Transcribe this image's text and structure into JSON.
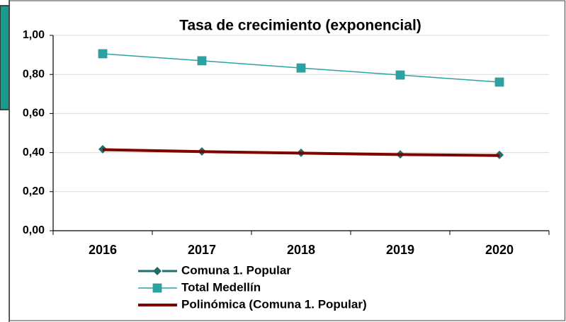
{
  "chart_data": {
    "type": "line",
    "title": "Tasa de crecimiento (exponencial)",
    "categories": [
      "2016",
      "2017",
      "2018",
      "2019",
      "2020"
    ],
    "series": [
      {
        "name": "Comuna 1. Popular",
        "color": "#1f6e6e",
        "marker": "diamond",
        "values": [
          0.417,
          0.406,
          0.399,
          0.391,
          0.388
        ]
      },
      {
        "name": "Total Medellín",
        "color": "#2aa3a3",
        "marker": "square",
        "values": [
          0.906,
          0.87,
          0.833,
          0.797,
          0.761
        ]
      },
      {
        "name": "Polinómica (Comuna 1. Popular)",
        "color": "#800000",
        "marker": "none",
        "values": [
          0.415,
          0.405,
          0.397,
          0.39,
          0.385
        ]
      }
    ],
    "ylim": [
      0,
      1
    ],
    "yticks": [
      {
        "value": 0,
        "label": "0,00"
      },
      {
        "value": 0.2,
        "label": "0,20"
      },
      {
        "value": 0.4,
        "label": "0,40"
      },
      {
        "value": 0.6,
        "label": "0,60"
      },
      {
        "value": 0.8,
        "label": "0,80"
      },
      {
        "value": 1,
        "label": "1,00"
      }
    ],
    "grid": true,
    "legend": "bottom"
  }
}
